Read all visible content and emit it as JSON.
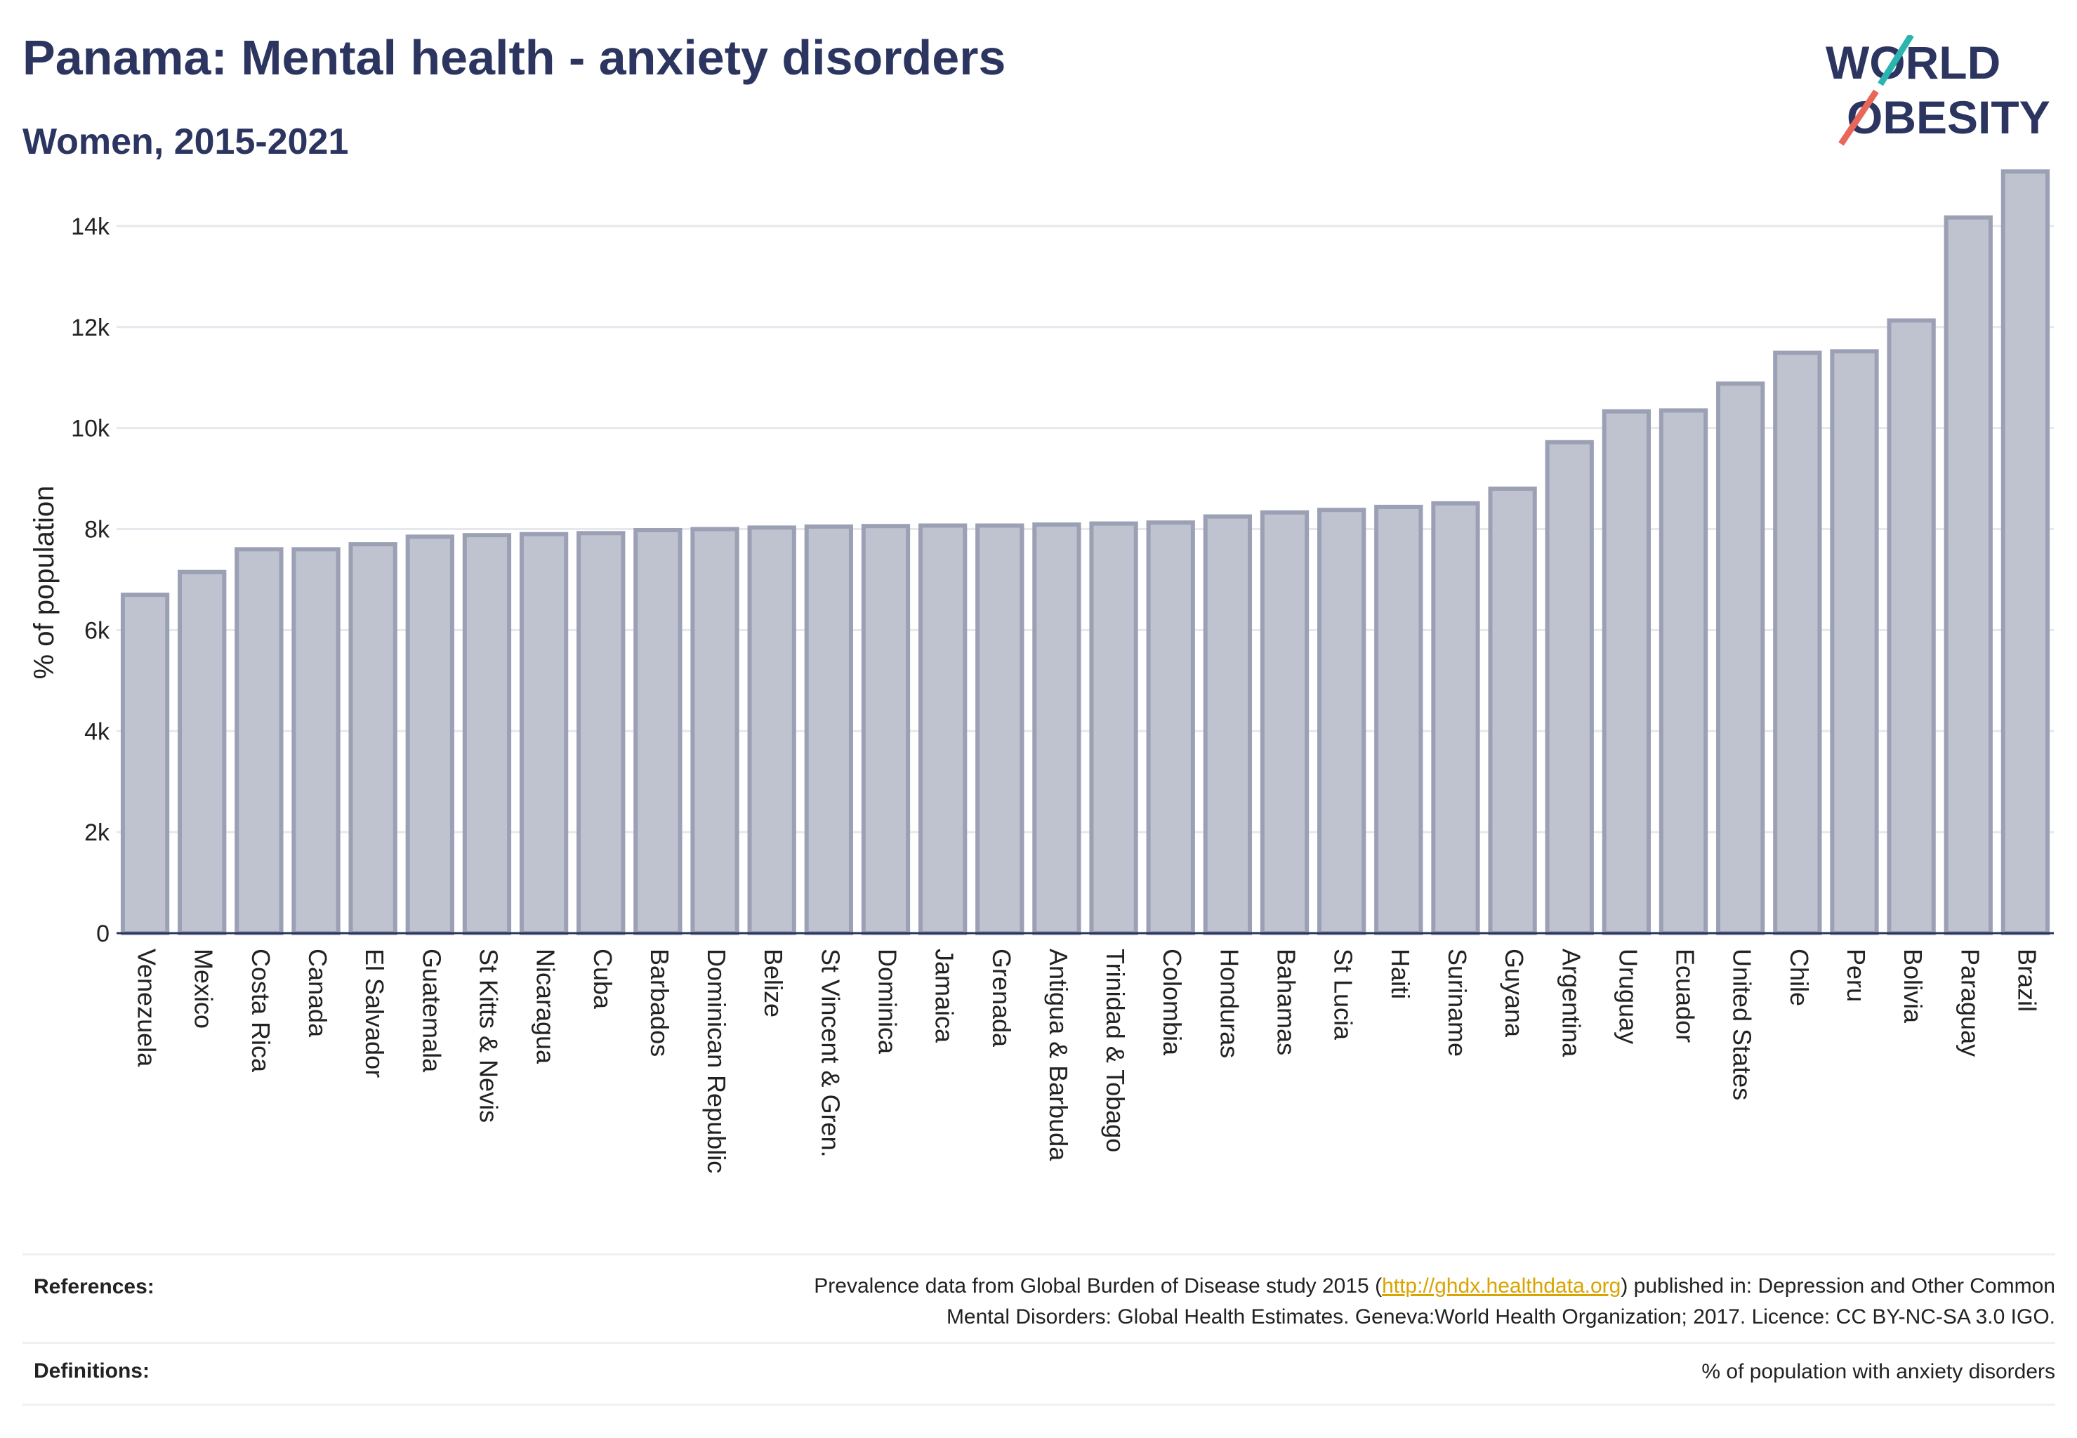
{
  "title": "Panama: Mental health - anxiety disorders",
  "subtitle": "Women, 2015-2021",
  "logo": {
    "line1": "WORLD",
    "line2": "OBESITY"
  },
  "colors": {
    "bar_fill": "#bfc3cf",
    "bar_stroke": "#9ba0b5",
    "title": "#2b3560",
    "logo_teal": "#2bb5b0",
    "logo_red": "#e8675a"
  },
  "chart_data": {
    "type": "bar",
    "ylabel": "% of population",
    "ylim": [
      0,
      15000
    ],
    "yticks": [
      {
        "value": 0,
        "label": "0"
      },
      {
        "value": 2000,
        "label": "2k"
      },
      {
        "value": 4000,
        "label": "4k"
      },
      {
        "value": 6000,
        "label": "6k"
      },
      {
        "value": 8000,
        "label": "8k"
      },
      {
        "value": 10000,
        "label": "10k"
      },
      {
        "value": 12000,
        "label": "12k"
      },
      {
        "value": 14000,
        "label": "14k"
      }
    ],
    "grid": true,
    "categories": [
      "Venezuela",
      "Mexico",
      "Costa Rica",
      "Canada",
      "El Salvador",
      "Guatemala",
      "St Kitts & Nevis",
      "Nicaragua",
      "Cuba",
      "Barbados",
      "Dominican Republic",
      "Belize",
      "St Vincent & Gren.",
      "Dominica",
      "Jamaica",
      "Grenada",
      "Antigua & Barbuda",
      "Trinidad & Tobago",
      "Colombia",
      "Honduras",
      "Bahamas",
      "St Lucia",
      "Haiti",
      "Suriname",
      "Guyana",
      "Argentina",
      "Uruguay",
      "Ecuador",
      "United States",
      "Chile",
      "Peru",
      "Bolivia",
      "Paraguay",
      "Brazil"
    ],
    "values": [
      6700,
      7150,
      7600,
      7600,
      7700,
      7850,
      7880,
      7900,
      7920,
      7980,
      8000,
      8030,
      8050,
      8060,
      8070,
      8070,
      8090,
      8110,
      8130,
      8250,
      8330,
      8380,
      8440,
      8510,
      8800,
      9720,
      10330,
      10350,
      10880,
      11490,
      11520,
      12130,
      14170,
      15080
    ]
  },
  "footer": {
    "references_label": "References:",
    "references_text_pre": "Prevalence data from Global Burden of Disease study 2015 (",
    "references_link": "http://ghdx.healthdata.org",
    "references_text_post": ") published in: Depression and Other Common",
    "references_line2": "Mental Disorders: Global Health Estimates. Geneva:World Health Organization; 2017. Licence: CC BY-NC-SA 3.0 IGO.",
    "definitions_label": "Definitions:",
    "definitions_text": "% of population with anxiety disorders"
  }
}
